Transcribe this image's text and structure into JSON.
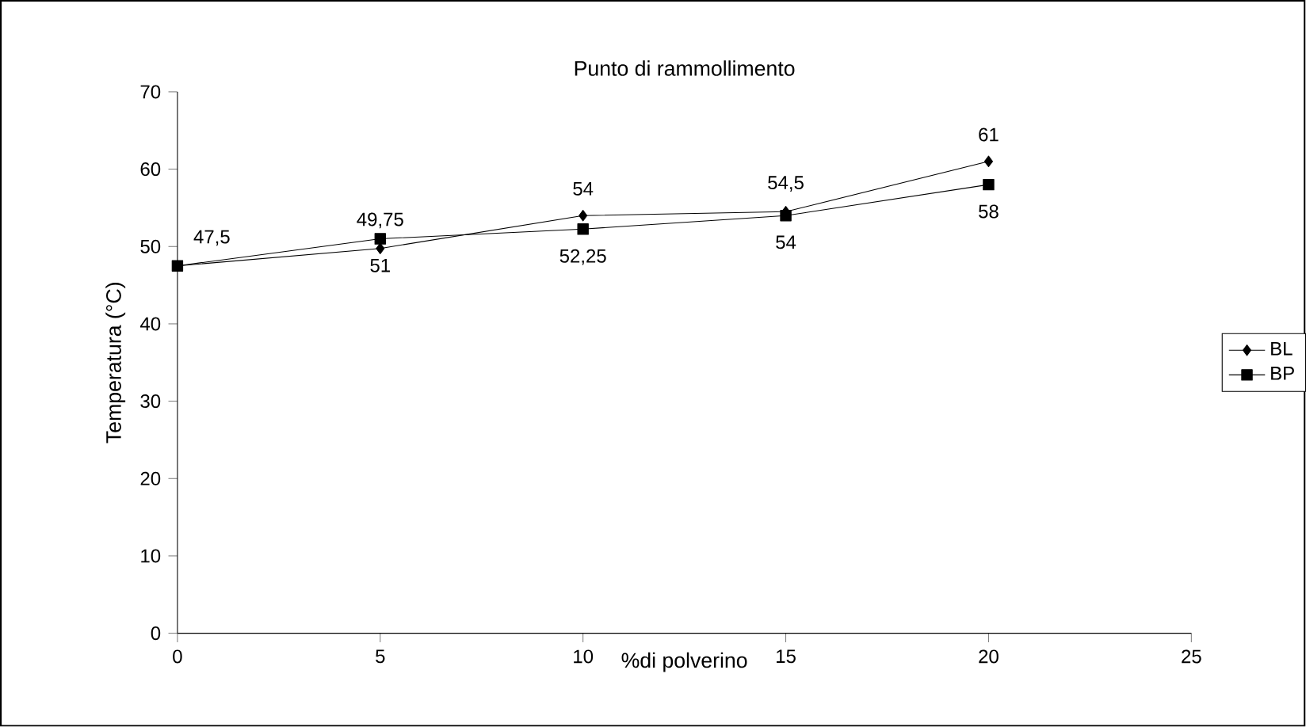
{
  "chart_data": {
    "type": "line",
    "title": "Punto di rammollimento",
    "xlabel": "%di polverino",
    "ylabel": "Temperatura (°C)",
    "x": [
      0,
      5,
      10,
      15,
      20
    ],
    "series": [
      {
        "name": "BL",
        "color": "#000000",
        "marker": "diamond",
        "values": [
          47.5,
          49.75,
          54,
          54.5,
          61
        ],
        "value_labels": [
          "47,5",
          "49,75",
          "54",
          "54,5",
          "61"
        ]
      },
      {
        "name": "BP",
        "color": "#000000",
        "marker": "square",
        "values": [
          47.5,
          51,
          52.25,
          54,
          58
        ],
        "value_labels": [
          null,
          "51",
          "52,25",
          "54",
          "58"
        ]
      }
    ],
    "xlim": [
      0,
      25
    ],
    "ylim": [
      0,
      70
    ],
    "xticks": [
      0,
      5,
      10,
      15,
      20,
      25
    ],
    "yticks": [
      0,
      10,
      20,
      30,
      40,
      50,
      60,
      70
    ],
    "grid": false,
    "legend": "right",
    "line_style": "solid"
  }
}
